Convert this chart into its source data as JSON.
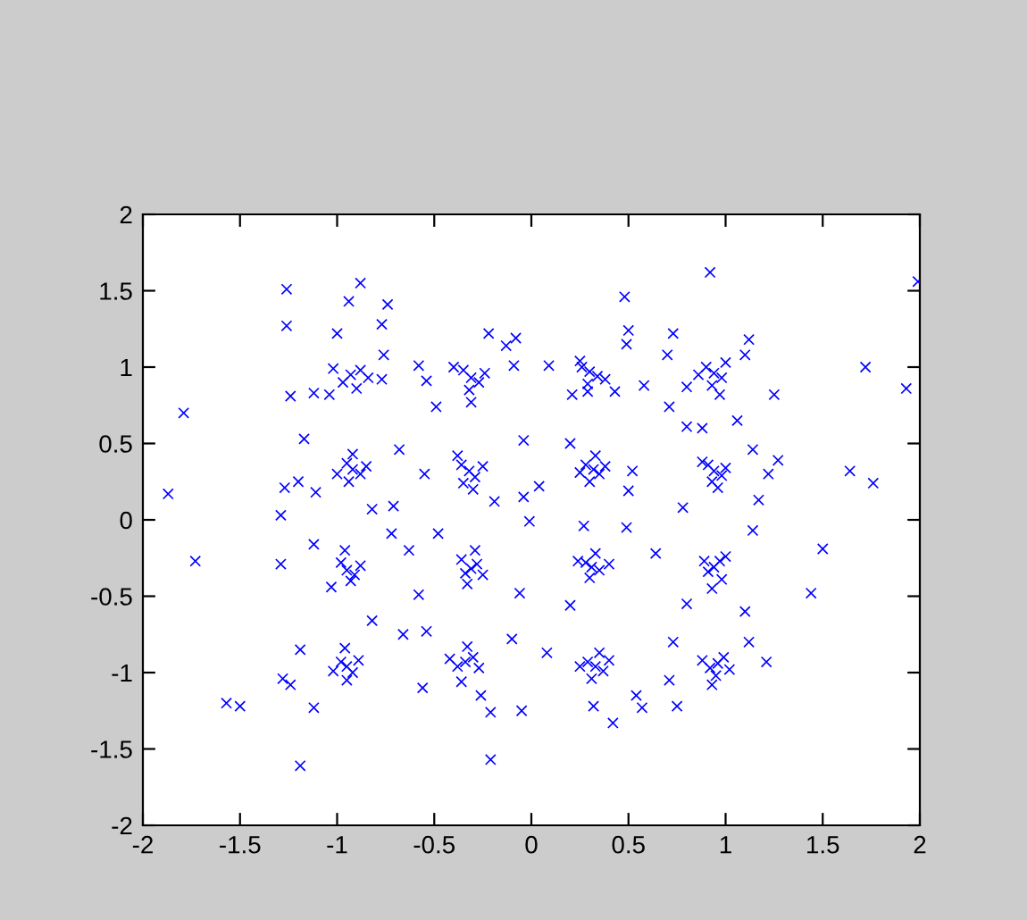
{
  "chart_data": {
    "type": "scatter",
    "marker": "cross",
    "color": "#0000ff",
    "x": [
      -0.93,
      -0.88,
      -0.97,
      -0.9,
      -1.02,
      -0.84,
      -1.04,
      -0.31,
      -0.35,
      -0.27,
      -0.32,
      -0.4,
      -0.24,
      -0.31,
      0.3,
      0.26,
      0.34,
      0.29,
      0.38,
      0.25,
      0.29,
      0.94,
      0.9,
      0.98,
      0.93,
      0.86,
      1.0,
      0.97,
      -0.92,
      -0.95,
      -0.88,
      -0.92,
      -1.0,
      -0.85,
      -0.94,
      -0.32,
      -0.36,
      -0.29,
      -0.35,
      -0.25,
      -0.38,
      -0.3,
      0.32,
      0.28,
      0.35,
      0.3,
      0.38,
      0.25,
      0.33,
      0.94,
      0.91,
      0.98,
      0.93,
      0.88,
      1.0,
      0.96,
      -0.95,
      -0.98,
      -0.91,
      -0.96,
      -0.88,
      -1.03,
      -0.93,
      -0.31,
      -0.28,
      -0.34,
      -0.36,
      -0.25,
      -0.33,
      -0.29,
      0.31,
      0.28,
      0.35,
      0.3,
      0.24,
      0.4,
      0.33,
      0.94,
      0.97,
      0.91,
      0.98,
      0.89,
      1.0,
      0.93,
      -0.95,
      -0.92,
      -0.98,
      -0.95,
      -0.89,
      -1.02,
      -0.96,
      -0.34,
      -0.38,
      -0.3,
      -0.36,
      -0.42,
      -0.27,
      -0.33,
      0.33,
      0.29,
      0.37,
      0.31,
      0.25,
      0.4,
      0.35,
      0.96,
      0.92,
      0.99,
      0.95,
      0.88,
      1.02,
      0.93,
      -1.79,
      -1.87,
      -1.26,
      -1.26,
      -0.88,
      -0.94,
      -0.74,
      -0.77,
      -0.76,
      -1.0,
      -1.24,
      -1.12,
      -1.17,
      -1.27,
      -1.2,
      -1.29,
      -0.49,
      -0.58,
      -0.54,
      -0.22,
      -0.13,
      -0.08,
      -0.09,
      -0.77,
      0.92,
      1.99,
      0.48,
      0.5,
      0.49,
      0.73,
      1.12,
      1.72,
      1.93,
      1.25,
      0.71,
      1.06,
      1.64,
      1.76,
      1.27,
      0.8,
      1.17,
      0.78,
      0.49,
      0.09,
      0.21,
      0.43,
      0.58,
      0.8,
      0.7,
      1.1,
      -1.73,
      -1.29,
      -1.19,
      -1.57,
      -1.5,
      -1.28,
      -1.24,
      -1.12,
      -0.21,
      -0.21,
      -0.05,
      -0.26,
      -0.56,
      -1.19,
      -0.82,
      -0.66,
      -0.54,
      -0.1,
      -0.72,
      -0.48,
      -0.63,
      -1.12,
      -0.58,
      -0.06,
      0.42,
      0.32,
      0.57,
      0.75,
      0.71,
      1.21,
      1.12,
      0.73,
      1.5,
      1.44,
      1.1,
      0.8,
      0.2,
      0.08,
      0.54,
      0.64,
      1.14,
      0.27,
      -0.68,
      -0.55,
      -0.71,
      -0.04,
      -0.04,
      -0.19,
      -0.82,
      -1.11,
      0.04,
      0.52,
      0.5,
      1.14,
      1.22,
      0.2,
      0.88,
      -0.01
    ],
    "values": [
      0.95,
      0.98,
      0.9,
      0.86,
      0.99,
      0.93,
      0.82,
      0.93,
      0.98,
      0.9,
      0.85,
      1.0,
      0.96,
      0.77,
      0.97,
      1.0,
      0.94,
      0.89,
      0.92,
      1.04,
      0.84,
      0.96,
      1.0,
      0.93,
      0.88,
      0.95,
      1.03,
      0.82,
      0.33,
      0.37,
      0.3,
      0.43,
      0.3,
      0.35,
      0.25,
      0.32,
      0.36,
      0.28,
      0.24,
      0.35,
      0.42,
      0.2,
      0.33,
      0.36,
      0.3,
      0.25,
      0.35,
      0.31,
      0.42,
      0.32,
      0.36,
      0.29,
      0.25,
      0.38,
      0.34,
      0.21,
      -0.33,
      -0.28,
      -0.36,
      -0.2,
      -0.3,
      -0.44,
      -0.4,
      -0.32,
      -0.29,
      -0.35,
      -0.26,
      -0.36,
      -0.42,
      -0.2,
      -0.31,
      -0.28,
      -0.33,
      -0.38,
      -0.27,
      -0.29,
      -0.22,
      -0.31,
      -0.27,
      -0.34,
      -0.39,
      -0.27,
      -0.24,
      -0.45,
      -0.96,
      -1.0,
      -0.93,
      -1.05,
      -0.92,
      -0.99,
      -0.84,
      -0.93,
      -0.96,
      -0.9,
      -1.06,
      -0.91,
      -0.97,
      -0.83,
      -0.96,
      -0.93,
      -0.99,
      -1.04,
      -0.96,
      -0.92,
      -0.87,
      -0.94,
      -0.97,
      -0.9,
      -1.02,
      -0.92,
      -0.98,
      -1.08,
      0.7,
      0.17,
      1.51,
      1.27,
      1.55,
      1.43,
      1.41,
      1.28,
      1.08,
      1.22,
      0.81,
      0.83,
      0.53,
      0.21,
      0.25,
      0.03,
      0.74,
      1.01,
      0.91,
      1.22,
      1.14,
      1.19,
      1.01,
      0.92,
      1.62,
      1.56,
      1.46,
      1.24,
      1.15,
      1.22,
      1.18,
      1.0,
      0.86,
      0.82,
      0.74,
      0.65,
      0.32,
      0.24,
      0.39,
      0.61,
      0.13,
      0.08,
      -0.05,
      1.01,
      0.82,
      0.84,
      0.88,
      0.87,
      1.08,
      1.08,
      -0.27,
      -0.29,
      -1.61,
      -1.2,
      -1.22,
      -1.04,
      -1.08,
      -1.23,
      -1.57,
      -1.26,
      -1.25,
      -1.15,
      -1.1,
      -0.85,
      -0.66,
      -0.75,
      -0.73,
      -0.78,
      -0.09,
      -0.09,
      -0.2,
      -0.16,
      -0.49,
      -0.48,
      -1.33,
      -1.22,
      -1.23,
      -1.22,
      -1.05,
      -0.93,
      -0.8,
      -0.8,
      -0.19,
      -0.48,
      -0.6,
      -0.55,
      -0.56,
      -0.87,
      -1.15,
      -0.22,
      -0.07,
      -0.04,
      0.46,
      0.3,
      0.09,
      0.52,
      0.15,
      0.12,
      0.07,
      0.18,
      0.22,
      0.32,
      0.19,
      0.46,
      0.3,
      0.5,
      0.6,
      -0.01
    ],
    "xlim": [
      -2,
      2
    ],
    "ylim": [
      -2,
      2
    ],
    "xticks": [
      -2,
      -1.5,
      -1,
      -0.5,
      0,
      0.5,
      1,
      1.5,
      2
    ],
    "yticks": [
      -2,
      -1.5,
      -1,
      -0.5,
      0,
      0.5,
      1,
      1.5,
      2
    ]
  }
}
